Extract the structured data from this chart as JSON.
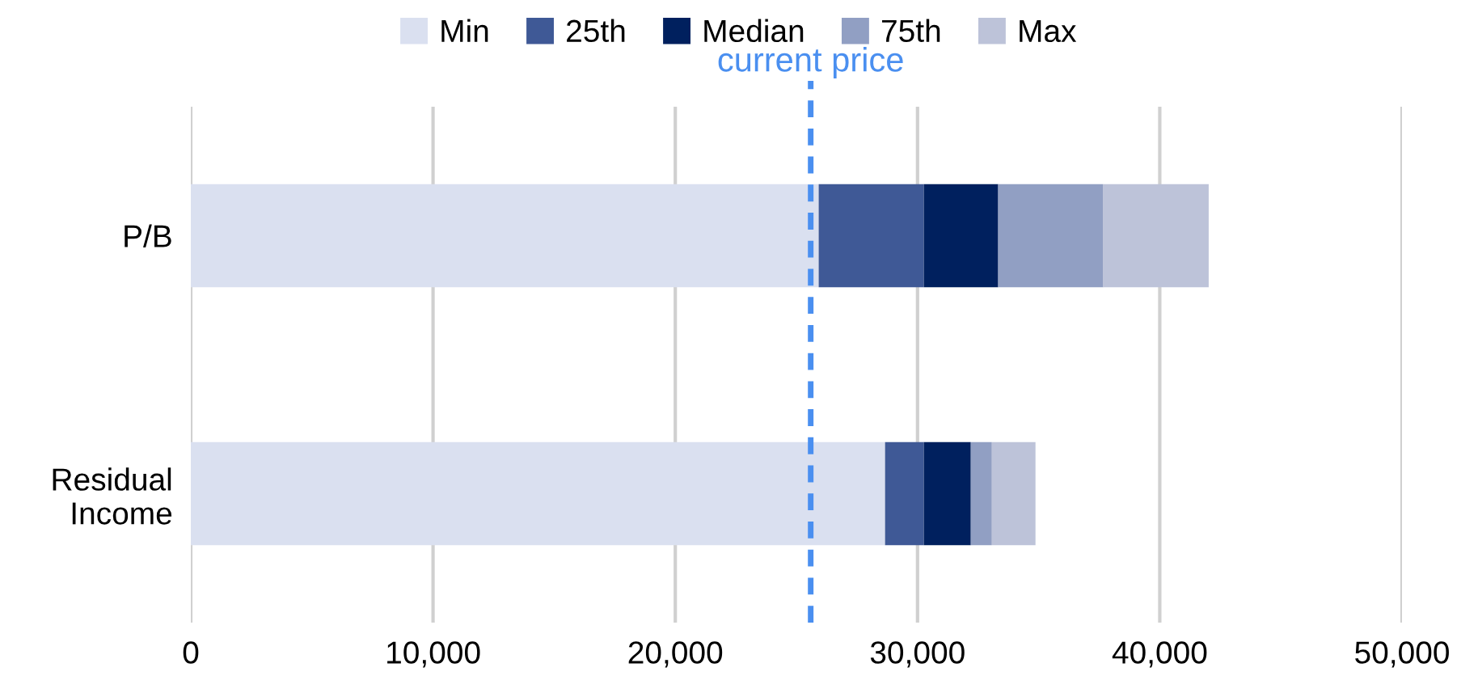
{
  "chart_data": {
    "type": "bar",
    "orientation": "horizontal",
    "stacked": true,
    "categories": [
      "P/B",
      "Residual\nIncome"
    ],
    "series": [
      {
        "name": "Min",
        "color": "#dae0f0",
        "values": [
          25920,
          28660
        ]
      },
      {
        "name": "25th",
        "color": "#3f5996",
        "values": [
          4340,
          1600
        ]
      },
      {
        "name": "Median",
        "color": "#00205e",
        "values": [
          3070,
          1940
        ]
      },
      {
        "name": "75th",
        "color": "#919fc3",
        "values": [
          4340,
          870
        ]
      },
      {
        "name": "Max",
        "color": "#bdc3d9",
        "values": [
          4350,
          1800
        ]
      }
    ],
    "xlim": [
      0,
      50000
    ],
    "xticks": [
      {
        "value": 0,
        "label": "0"
      },
      {
        "value": 10000,
        "label": "10,000"
      },
      {
        "value": 20000,
        "label": "20,000"
      },
      {
        "value": 30000,
        "label": "30,000"
      },
      {
        "value": 40000,
        "label": "40,000"
      },
      {
        "value": 50000,
        "label": "50,000"
      }
    ],
    "grid": "x",
    "legend": "top",
    "ref_lines": [
      {
        "axis": "x",
        "value": 25590,
        "label": "current price",
        "color": "#4a8ff0",
        "line_style": "dashed"
      }
    ]
  }
}
